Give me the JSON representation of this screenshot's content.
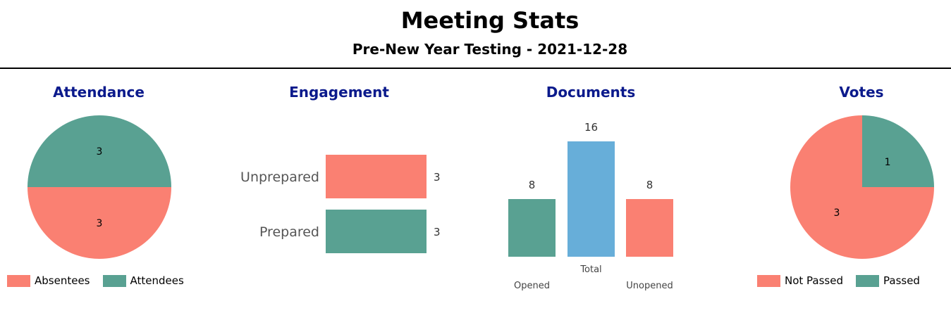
{
  "page": {
    "title": "Meeting Stats",
    "subtitle": "Pre-New Year  Testing - 2021-12-28"
  },
  "colors": {
    "salmon": "#fa8072",
    "teal": "#59a192",
    "blue": "#67aed9",
    "title_blue": "#0b1a8c"
  },
  "chart_data": [
    {
      "type": "pie",
      "title": "Attendance",
      "slices": [
        {
          "name": "Absentees",
          "value": 3,
          "color": "#fa8072"
        },
        {
          "name": "Attendees",
          "value": 3,
          "color": "#59a192"
        }
      ],
      "legend": "bottom"
    },
    {
      "type": "bar",
      "orientation": "horizontal",
      "title": "Engagement",
      "categories": [
        "Unprepared",
        "Prepared"
      ],
      "values": [
        3,
        3
      ],
      "colors": [
        "#fa8072",
        "#59a192"
      ]
    },
    {
      "type": "bar",
      "title": "Documents",
      "categories": [
        "Opened",
        "Total",
        "Unopened"
      ],
      "values": [
        8,
        16,
        8
      ],
      "colors": [
        "#59a192",
        "#67aed9",
        "#fa8072"
      ]
    },
    {
      "type": "pie",
      "title": "Votes",
      "slices": [
        {
          "name": "Not Passed",
          "value": 3,
          "color": "#fa8072"
        },
        {
          "name": "Passed",
          "value": 1,
          "color": "#59a192"
        }
      ],
      "legend": "bottom"
    }
  ]
}
